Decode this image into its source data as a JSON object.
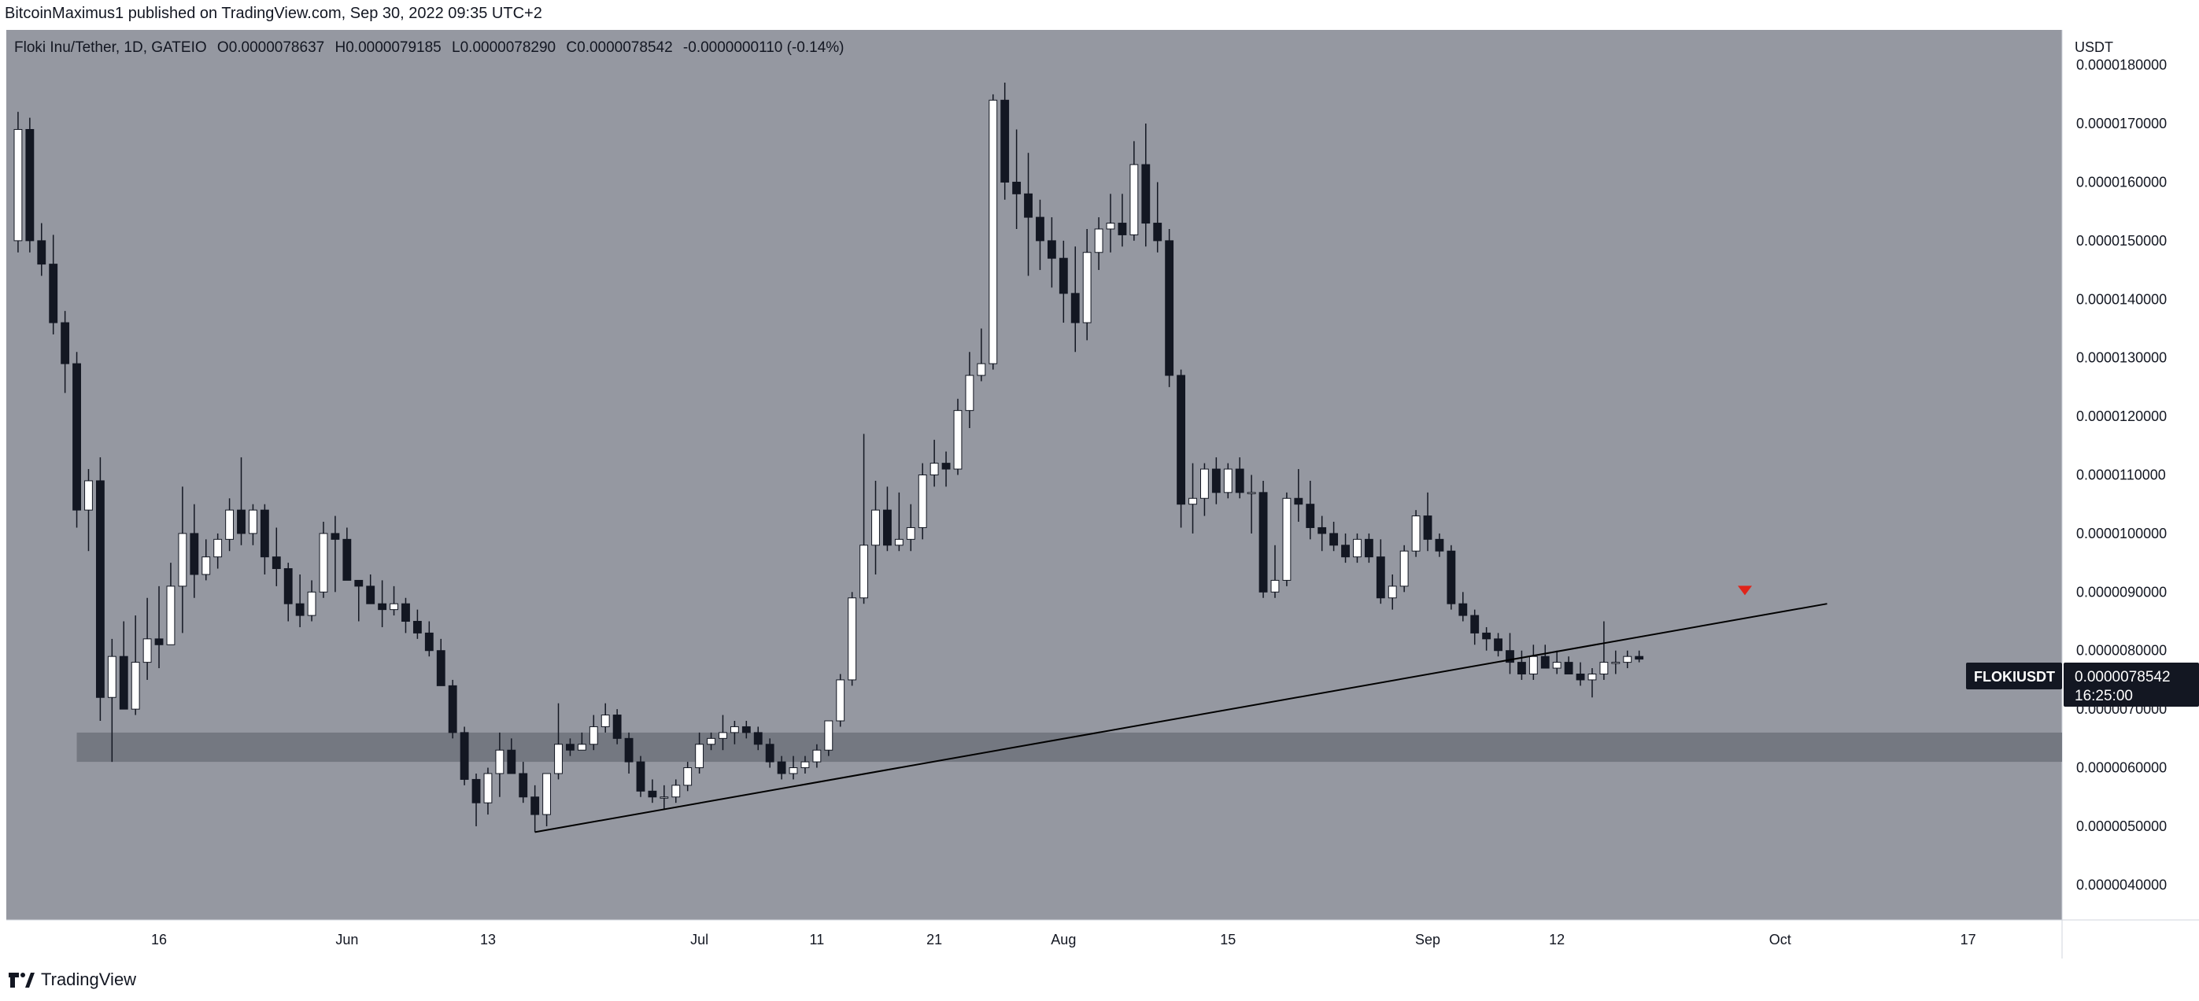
{
  "header": {
    "publish_line": "BitcoinMaximus1 published on TradingView.com, Sep 30, 2022 09:35 UTC+2"
  },
  "legend": {
    "symbol": "Floki Inu/Tether, 1D, GATEIO",
    "o_label": "O",
    "o_value": "0.0000078637",
    "h_label": "H",
    "h_value": "0.0000079185",
    "l_label": "L",
    "l_value": "0.0000078290",
    "c_label": "C",
    "c_value": "0.0000078542",
    "change": "-0.0000000110 (-0.14%)"
  },
  "footer": {
    "brand": "TradingView"
  },
  "colors": {
    "background": "#9598a1",
    "bull_body": "#ffffff",
    "bear_body": "#131722",
    "support_zone": "#6f727b",
    "trendline": "#000000",
    "marker": "#e0241a",
    "price_label_bg": "#131722"
  },
  "chart_data": {
    "type": "candlestick",
    "symbol": "FLOKIUSDT",
    "currency_label": "USDT",
    "last_price_label": "0.0000078542",
    "countdown": "16:25:00",
    "ylim": [
      3.4e-06,
      1.86e-05
    ],
    "yticks": [
      {
        "v": 4e-06,
        "label": "0.0000040000"
      },
      {
        "v": 5e-06,
        "label": "0.0000050000"
      },
      {
        "v": 6e-06,
        "label": "0.0000060000"
      },
      {
        "v": 7e-06,
        "label": "0.0000070000"
      },
      {
        "v": 8e-06,
        "label": "0.0000080000"
      },
      {
        "v": 9e-06,
        "label": "0.0000090000"
      },
      {
        "v": 1e-05,
        "label": "0.0000100000"
      },
      {
        "v": 1.1e-05,
        "label": "0.0000110000"
      },
      {
        "v": 1.2e-05,
        "label": "0.0000120000"
      },
      {
        "v": 1.3e-05,
        "label": "0.0000130000"
      },
      {
        "v": 1.4e-05,
        "label": "0.0000140000"
      },
      {
        "v": 1.5e-05,
        "label": "0.0000150000"
      },
      {
        "v": 1.6e-05,
        "label": "0.0000160000"
      },
      {
        "v": 1.7e-05,
        "label": "0.0000170000"
      },
      {
        "v": 1.8e-05,
        "label": "0.0000180000"
      }
    ],
    "xticks": [
      {
        "date": "2022-05-16",
        "label": "16"
      },
      {
        "date": "2022-06-01",
        "label": "Jun"
      },
      {
        "date": "2022-06-13",
        "label": "13"
      },
      {
        "date": "2022-07-01",
        "label": "Jul"
      },
      {
        "date": "2022-07-11",
        "label": "11"
      },
      {
        "date": "2022-07-21",
        "label": "21"
      },
      {
        "date": "2022-08-01",
        "label": "Aug"
      },
      {
        "date": "2022-08-15",
        "label": "15"
      },
      {
        "date": "2022-09-01",
        "label": "Sep"
      },
      {
        "date": "2022-09-12",
        "label": "12"
      },
      {
        "date": "2022-10-01",
        "label": "Oct"
      },
      {
        "date": "2022-10-17",
        "label": "17"
      }
    ],
    "xlim": [
      "2022-05-03",
      "2022-10-25"
    ],
    "support_zone": {
      "from_date": "2022-05-09",
      "to_date": "2022-10-25",
      "low": 6.1e-06,
      "high": 6.6e-06
    },
    "trendline": {
      "from_date": "2022-06-17",
      "from_value": 4.9e-06,
      "to_date": "2022-10-05",
      "to_value": 8.8e-06
    },
    "marker": {
      "date": "2022-09-28",
      "value": 9e-06
    },
    "candles_start_date": "2022-05-04",
    "candles": [
      [
        1.5e-05,
        1.72e-05,
        1.48e-05,
        1.69e-05
      ],
      [
        1.69e-05,
        1.71e-05,
        1.48e-05,
        1.5e-05
      ],
      [
        1.5e-05,
        1.53e-05,
        1.44e-05,
        1.46e-05
      ],
      [
        1.46e-05,
        1.51e-05,
        1.34e-05,
        1.36e-05
      ],
      [
        1.36e-05,
        1.38e-05,
        1.24e-05,
        1.29e-05
      ],
      [
        1.29e-05,
        1.31e-05,
        1.01e-05,
        1.04e-05
      ],
      [
        1.04e-05,
        1.11e-05,
        9.7e-06,
        1.09e-05
      ],
      [
        1.09e-05,
        1.13e-05,
        6.8e-06,
        7.2e-06
      ],
      [
        7.2e-06,
        8.2e-06,
        6.1e-06,
        7.9e-06
      ],
      [
        7.9e-06,
        8.5e-06,
        7e-06,
        7e-06
      ],
      [
        7e-06,
        8.6e-06,
        6.9e-06,
        7.8e-06
      ],
      [
        7.8e-06,
        8.9e-06,
        7.5e-06,
        8.2e-06
      ],
      [
        8.2e-06,
        9.1e-06,
        7.7e-06,
        8.1e-06
      ],
      [
        8.1e-06,
        9.5e-06,
        8.1e-06,
        9.1e-06
      ],
      [
        9.1e-06,
        1.08e-05,
        8.3e-06,
        1e-05
      ],
      [
        1e-05,
        1.05e-05,
        8.9e-06,
        9.3e-06
      ],
      [
        9.3e-06,
        9.9e-06,
        9.2e-06,
        9.6e-06
      ],
      [
        9.6e-06,
        1e-05,
        9.4e-06,
        9.9e-06
      ],
      [
        9.9e-06,
        1.06e-05,
        9.7e-06,
        1.04e-05
      ],
      [
        1.04e-05,
        1.13e-05,
        9.8e-06,
        1e-05
      ],
      [
        1e-05,
        1.05e-05,
        9.8e-06,
        1.04e-05
      ],
      [
        1.04e-05,
        1.05e-05,
        9.3e-06,
        9.6e-06
      ],
      [
        9.6e-06,
        1.01e-05,
        9.1e-06,
        9.4e-06
      ],
      [
        9.4e-06,
        9.5e-06,
        8.5e-06,
        8.8e-06
      ],
      [
        8.8e-06,
        9.3e-06,
        8.4e-06,
        8.6e-06
      ],
      [
        8.6e-06,
        9.2e-06,
        8.5e-06,
        9e-06
      ],
      [
        9e-06,
        1.02e-05,
        8.9e-06,
        1e-05
      ],
      [
        1e-05,
        1.03e-05,
        9e-06,
        9.9e-06
      ],
      [
        9.9e-06,
        1.01e-05,
        9.2e-06,
        9.2e-06
      ],
      [
        9.2e-06,
        9.2e-06,
        8.5e-06,
        9.1e-06
      ],
      [
        9.1e-06,
        9.3e-06,
        8.8e-06,
        8.8e-06
      ],
      [
        8.8e-06,
        9.2e-06,
        8.4e-06,
        8.7e-06
      ],
      [
        8.7e-06,
        9.1e-06,
        8.6e-06,
        8.8e-06
      ],
      [
        8.8e-06,
        8.9e-06,
        8.3e-06,
        8.5e-06
      ],
      [
        8.5e-06,
        8.7e-06,
        8.2e-06,
        8.3e-06
      ],
      [
        8.3e-06,
        8.5e-06,
        7.9e-06,
        8e-06
      ],
      [
        8e-06,
        8.2e-06,
        7.4e-06,
        7.4e-06
      ],
      [
        7.4e-06,
        7.5e-06,
        6.5e-06,
        6.6e-06
      ],
      [
        6.6e-06,
        6.7e-06,
        5.7e-06,
        5.8e-06
      ],
      [
        5.8e-06,
        5.9e-06,
        5e-06,
        5.4e-06
      ],
      [
        5.4e-06,
        6e-06,
        5.2e-06,
        5.9e-06
      ],
      [
        5.9e-06,
        6.6e-06,
        5.5e-06,
        6.3e-06
      ],
      [
        6.3e-06,
        6.5e-06,
        5.9e-06,
        5.9e-06
      ],
      [
        5.9e-06,
        6.1e-06,
        5.4e-06,
        5.5e-06
      ],
      [
        5.5e-06,
        5.7e-06,
        4.9e-06,
        5.2e-06
      ],
      [
        5.2e-06,
        5.9e-06,
        5e-06,
        5.9e-06
      ],
      [
        5.9e-06,
        7.1e-06,
        5.8e-06,
        6.4e-06
      ],
      [
        6.4e-06,
        6.5e-06,
        6.2e-06,
        6.3e-06
      ],
      [
        6.3e-06,
        6.6e-06,
        6.3e-06,
        6.4e-06
      ],
      [
        6.4e-06,
        6.9e-06,
        6.3e-06,
        6.7e-06
      ],
      [
        6.7e-06,
        7.1e-06,
        6.6e-06,
        6.9e-06
      ],
      [
        6.9e-06,
        7e-06,
        6.4e-06,
        6.5e-06
      ],
      [
        6.5e-06,
        6.6e-06,
        5.9e-06,
        6.1e-06
      ],
      [
        6.1e-06,
        6.2e-06,
        5.5e-06,
        5.6e-06
      ],
      [
        5.6e-06,
        5.8e-06,
        5.4e-06,
        5.5e-06
      ],
      [
        5.5e-06,
        5.7e-06,
        5.3e-06,
        5.5e-06
      ],
      [
        5.5e-06,
        5.8e-06,
        5.4e-06,
        5.7e-06
      ],
      [
        5.7e-06,
        6.1e-06,
        5.6e-06,
        6e-06
      ],
      [
        6e-06,
        6.6e-06,
        5.9e-06,
        6.4e-06
      ],
      [
        6.4e-06,
        6.6e-06,
        6.3e-06,
        6.5e-06
      ],
      [
        6.5e-06,
        6.9e-06,
        6.3e-06,
        6.6e-06
      ],
      [
        6.6e-06,
        6.8e-06,
        6.4e-06,
        6.7e-06
      ],
      [
        6.7e-06,
        6.8e-06,
        6.5e-06,
        6.6e-06
      ],
      [
        6.6e-06,
        6.7e-06,
        6.3e-06,
        6.4e-06
      ],
      [
        6.4e-06,
        6.5e-06,
        6e-06,
        6.1e-06
      ],
      [
        6.1e-06,
        6.2e-06,
        5.8e-06,
        5.9e-06
      ],
      [
        5.9e-06,
        6.2e-06,
        5.8e-06,
        6e-06
      ],
      [
        6e-06,
        6.2e-06,
        5.9e-06,
        6.1e-06
      ],
      [
        6.1e-06,
        6.4e-06,
        6e-06,
        6.3e-06
      ],
      [
        6.3e-06,
        6.8e-06,
        6.2e-06,
        6.8e-06
      ],
      [
        6.8e-06,
        7.6e-06,
        6.7e-06,
        7.5e-06
      ],
      [
        7.5e-06,
        9e-06,
        7.4e-06,
        8.9e-06
      ],
      [
        8.9e-06,
        1.17e-05,
        8.8e-06,
        9.8e-06
      ],
      [
        9.8e-06,
        1.09e-05,
        9.3e-06,
        1.04e-05
      ],
      [
        1.04e-05,
        1.08e-05,
        9.7e-06,
        9.8e-06
      ],
      [
        9.8e-06,
        1.07e-05,
        9.7e-06,
        9.9e-06
      ],
      [
        9.9e-06,
        1.05e-05,
        9.7e-06,
        1.01e-05
      ],
      [
        1.01e-05,
        1.12e-05,
        9.9e-06,
        1.1e-05
      ],
      [
        1.1e-05,
        1.16e-05,
        1.08e-05,
        1.12e-05
      ],
      [
        1.12e-05,
        1.14e-05,
        1.08e-05,
        1.11e-05
      ],
      [
        1.11e-05,
        1.23e-05,
        1.1e-05,
        1.21e-05
      ],
      [
        1.21e-05,
        1.31e-05,
        1.18e-05,
        1.27e-05
      ],
      [
        1.27e-05,
        1.35e-05,
        1.26e-05,
        1.29e-05
      ],
      [
        1.29e-05,
        1.75e-05,
        1.28e-05,
        1.74e-05
      ],
      [
        1.74e-05,
        1.77e-05,
        1.57e-05,
        1.6e-05
      ],
      [
        1.6e-05,
        1.69e-05,
        1.52e-05,
        1.58e-05
      ],
      [
        1.58e-05,
        1.65e-05,
        1.44e-05,
        1.54e-05
      ],
      [
        1.54e-05,
        1.57e-05,
        1.45e-05,
        1.5e-05
      ],
      [
        1.5e-05,
        1.54e-05,
        1.42e-05,
        1.47e-05
      ],
      [
        1.47e-05,
        1.5e-05,
        1.36e-05,
        1.41e-05
      ],
      [
        1.41e-05,
        1.49e-05,
        1.31e-05,
        1.36e-05
      ],
      [
        1.36e-05,
        1.52e-05,
        1.33e-05,
        1.48e-05
      ],
      [
        1.48e-05,
        1.54e-05,
        1.45e-05,
        1.52e-05
      ],
      [
        1.52e-05,
        1.58e-05,
        1.48e-05,
        1.53e-05
      ],
      [
        1.53e-05,
        1.58e-05,
        1.49e-05,
        1.51e-05
      ],
      [
        1.51e-05,
        1.67e-05,
        1.5e-05,
        1.63e-05
      ],
      [
        1.63e-05,
        1.7e-05,
        1.49e-05,
        1.53e-05
      ],
      [
        1.53e-05,
        1.6e-05,
        1.48e-05,
        1.5e-05
      ],
      [
        1.5e-05,
        1.52e-05,
        1.25e-05,
        1.27e-05
      ],
      [
        1.27e-05,
        1.28e-05,
        1.01e-05,
        1.05e-05
      ],
      [
        1.05e-05,
        1.12e-05,
        1e-05,
        1.06e-05
      ],
      [
        1.06e-05,
        1.12e-05,
        1.03e-05,
        1.11e-05
      ],
      [
        1.11e-05,
        1.13e-05,
        1.05e-05,
        1.07e-05
      ],
      [
        1.07e-05,
        1.12e-05,
        1.06e-05,
        1.11e-05
      ],
      [
        1.11e-05,
        1.13e-05,
        1.06e-05,
        1.07e-05
      ],
      [
        1.07e-05,
        1.1e-05,
        1e-05,
        1.07e-05
      ],
      [
        1.07e-05,
        1.09e-05,
        8.9e-06,
        9e-06
      ],
      [
        9e-06,
        9.8e-06,
        8.9e-06,
        9.2e-06
      ],
      [
        9.2e-06,
        1.07e-05,
        9.1e-06,
        1.06e-05
      ],
      [
        1.06e-05,
        1.11e-05,
        1.02e-05,
        1.05e-05
      ],
      [
        1.05e-05,
        1.09e-05,
        9.9e-06,
        1.01e-05
      ],
      [
        1.01e-05,
        1.03e-05,
        9.7e-06,
        1e-05
      ],
      [
        1e-05,
        1.02e-05,
        9.7e-06,
        9.8e-06
      ],
      [
        9.8e-06,
        1e-05,
        9.5e-06,
        9.6e-06
      ],
      [
        9.6e-06,
        1e-05,
        9.5e-06,
        9.9e-06
      ],
      [
        9.9e-06,
        1e-05,
        9.5e-06,
        9.6e-06
      ],
      [
        9.6e-06,
        9.9e-06,
        8.8e-06,
        8.9e-06
      ],
      [
        8.9e-06,
        9.3e-06,
        8.7e-06,
        9.1e-06
      ],
      [
        9.1e-06,
        9.8e-06,
        9e-06,
        9.7e-06
      ],
      [
        9.7e-06,
        1.04e-05,
        9.6e-06,
        1.03e-05
      ],
      [
        1.03e-05,
        1.07e-05,
        9.7e-06,
        9.9e-06
      ],
      [
        9.9e-06,
        1e-05,
        9.6e-06,
        9.7e-06
      ],
      [
        9.7e-06,
        9.8e-06,
        8.7e-06,
        8.8e-06
      ],
      [
        8.8e-06,
        9e-06,
        8.5e-06,
        8.6e-06
      ],
      [
        8.6e-06,
        8.7e-06,
        8.1e-06,
        8.3e-06
      ],
      [
        8.3e-06,
        8.4e-06,
        8e-06,
        8.2e-06
      ],
      [
        8.2e-06,
        8.3e-06,
        7.9e-06,
        8e-06
      ],
      [
        8e-06,
        8.3e-06,
        7.6e-06,
        7.8e-06
      ],
      [
        7.8e-06,
        8e-06,
        7.5e-06,
        7.6e-06
      ],
      [
        7.6e-06,
        8.1e-06,
        7.5e-06,
        7.9e-06
      ],
      [
        7.9e-06,
        8.1e-06,
        7.7e-06,
        7.7e-06
      ],
      [
        7.7e-06,
        8e-06,
        7.6e-06,
        7.8e-06
      ],
      [
        7.8e-06,
        7.9e-06,
        7.6e-06,
        7.6e-06
      ],
      [
        7.6e-06,
        7.8e-06,
        7.4e-06,
        7.5e-06
      ],
      [
        7.5e-06,
        7.7e-06,
        7.2e-06,
        7.6e-06
      ],
      [
        7.6e-06,
        8.5e-06,
        7.5e-06,
        7.8e-06
      ],
      [
        7.8e-06,
        8e-06,
        7.6e-06,
        7.8e-06
      ],
      [
        7.8e-06,
        8e-06,
        7.7e-06,
        7.9e-06
      ],
      [
        7.9e-06,
        8e-06,
        7.8e-06,
        7.8542e-06
      ]
    ]
  }
}
